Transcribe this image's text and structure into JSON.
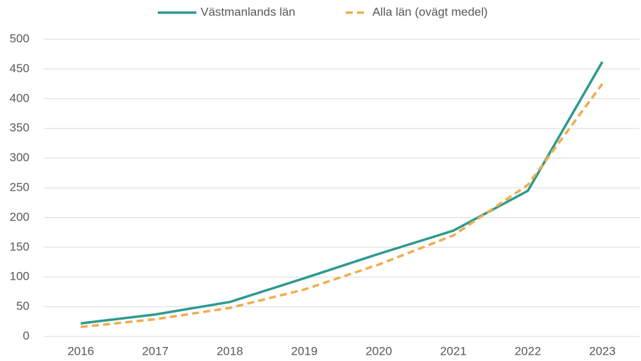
{
  "chart_data": {
    "type": "line",
    "categories": [
      "2016",
      "2017",
      "2018",
      "2019",
      "2020",
      "2021",
      "2022",
      "2023"
    ],
    "series": [
      {
        "name": "Västmanlands län",
        "color": "#2e9a8e",
        "dash": false,
        "values": [
          22,
          37,
          58,
          98,
          139,
          178,
          245,
          462
        ]
      },
      {
        "name": "Alla län (ovägt medel)",
        "color": "#f0ad4e",
        "dash": true,
        "values": [
          16,
          29,
          48,
          79,
          121,
          170,
          255,
          425
        ]
      }
    ],
    "ylim": [
      0,
      500
    ],
    "yticks": [
      0,
      50,
      100,
      150,
      200,
      250,
      300,
      350,
      400,
      450,
      500
    ],
    "grid": true,
    "legend": "top"
  }
}
